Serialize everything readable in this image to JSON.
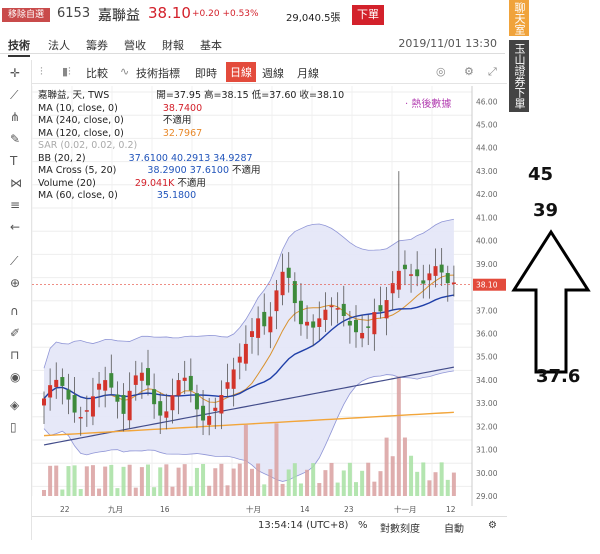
{
  "header": {
    "badge": "移除自選",
    "code": "6153",
    "name": "嘉聯益",
    "price": "38.10",
    "change": "+0.20 +0.53%",
    "volume": "29,040.5張",
    "order_button": "下單"
  },
  "side_tabs": {
    "chat": "聊天室",
    "broker": "玉山證券下單"
  },
  "nav": {
    "tabs": [
      "技術",
      "法人",
      "籌券",
      "營收",
      "財報",
      "基本"
    ],
    "active": "技術",
    "datetime": "2019/11/01 13:30"
  },
  "toolbar": {
    "compare": "比較",
    "indicators": "技術指標",
    "periods": [
      "即時",
      "日線",
      "週線",
      "月線"
    ],
    "active_period": "日線"
  },
  "legend": {
    "line1_name": "嘉聯益, 天, TWS",
    "open_label": "開=37.95",
    "high_label": "高=38.15",
    "low_label": "低=37.60",
    "close_label": "收=38.10",
    "ma10": "MA (10, close, 0)",
    "ma10_val": "38.7400",
    "ma240": "MA (240, close, 0)",
    "ma240_val": "不適用",
    "ma120": "MA (120, close, 0)",
    "ma120_val": "32.7967",
    "sar": "SAR (0.02, 0.02, 0.2)",
    "bb": "BB (20, 2)",
    "bb_vals": "37.6100  40.2913  34.9287",
    "macross": "MA Cross (5, 20)",
    "macross_vals": "38.2900  37.6100",
    "macross_na": "不適用",
    "volume": "Volume (20)",
    "volume_val": "29.041K",
    "volume_na": "不適用",
    "ma60": "MA (60, close, 0)",
    "ma60_val": "35.1800"
  },
  "ad_badge": "‧ 熱後數據",
  "annotations": {
    "top": "45",
    "middle": "39",
    "bottom": "37.6"
  },
  "chart_data": {
    "type": "line",
    "yaxis_ticks": [
      "46.00",
      "45.00",
      "44.00",
      "43.00",
      "42.00",
      "41.00",
      "40.00",
      "39.00",
      "38.10",
      "37.00",
      "36.00",
      "35.00",
      "34.00",
      "33.00",
      "32.00",
      "31.00",
      "30.00",
      "29.00"
    ],
    "xaxis_ticks": [
      "22",
      "九月",
      "16",
      "十月",
      "14",
      "23",
      "十一月",
      "12"
    ],
    "last_price_tag": "38.10",
    "ylim": [
      29,
      46
    ]
  },
  "bottom": {
    "time": "13:54:14 (UTC+8)",
    "percent": "%",
    "log": "對數刻度",
    "auto": "自動"
  }
}
